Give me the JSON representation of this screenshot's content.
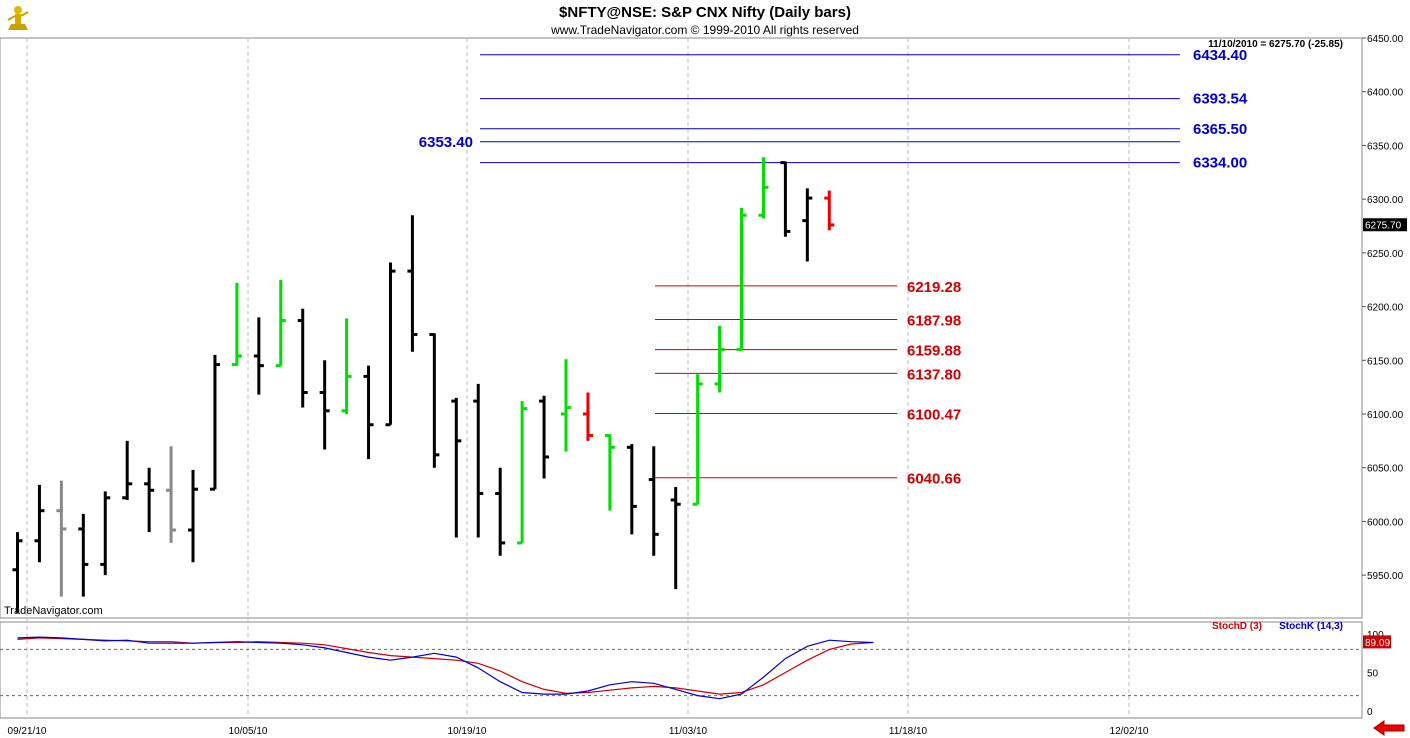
{
  "header": {
    "title": "$NFTY@NSE:  S&P CNX Nifty  (Daily bars)",
    "subtitle": "www.TradeNavigator.com © 1999-2010 All rights reserved",
    "quote": "11/10/2010 = 6275.70 (-25.85)",
    "watermark": "TradeNavigator.com"
  },
  "colors": {
    "up": "#00dd00",
    "down": "#000000",
    "gray": "#888888",
    "red": "#ee0000",
    "resistance": "#0000cc",
    "support": "#cc0000",
    "stochD": "#cc0000",
    "stochK": "#0000cc"
  },
  "icons": {
    "logo": "trader-figure-icon",
    "nav": "left-arrow-icon"
  },
  "chart_data": {
    "type": "bar",
    "subtype": "ohlc",
    "ylim": [
      5915,
      6455
    ],
    "y_ticks": [
      "6450.00",
      "6400.00",
      "6350.00",
      "6300.00",
      "6250.00",
      "6200.00",
      "6150.00",
      "6100.00",
      "6050.00",
      "6000.00",
      "5950.00"
    ],
    "x_labels": [
      "09/21/10",
      "10/05/10",
      "10/19/10",
      "11/03/10",
      "11/18/10",
      "12/02/10"
    ],
    "last_price": "6275.70",
    "bars": [
      {
        "o": 5955,
        "h": 5990,
        "l": 5915,
        "c": 5982,
        "col": "down"
      },
      {
        "o": 5982,
        "h": 6034,
        "l": 5962,
        "c": 6010,
        "col": "down"
      },
      {
        "o": 6010,
        "h": 6038,
        "l": 5930,
        "c": 5993,
        "col": "gray"
      },
      {
        "o": 5993,
        "h": 6007,
        "l": 5930,
        "c": 5960,
        "col": "down"
      },
      {
        "o": 5960,
        "h": 6028,
        "l": 5950,
        "c": 6022,
        "col": "down"
      },
      {
        "o": 6022,
        "h": 6075,
        "l": 6020,
        "c": 6035,
        "col": "down"
      },
      {
        "o": 6035,
        "h": 6050,
        "l": 5990,
        "c": 6029,
        "col": "down"
      },
      {
        "o": 6029,
        "h": 6070,
        "l": 5980,
        "c": 5992,
        "col": "gray"
      },
      {
        "o": 5992,
        "h": 6048,
        "l": 5962,
        "c": 6030,
        "col": "down"
      },
      {
        "o": 6030,
        "h": 6155,
        "l": 6030,
        "c": 6146,
        "col": "down"
      },
      {
        "o": 6146,
        "h": 6222,
        "l": 6145,
        "c": 6154,
        "col": "up"
      },
      {
        "o": 6154,
        "h": 6190,
        "l": 6118,
        "c": 6145,
        "col": "down"
      },
      {
        "o": 6145,
        "h": 6225,
        "l": 6145,
        "c": 6187,
        "col": "up"
      },
      {
        "o": 6187,
        "h": 6198,
        "l": 6106,
        "c": 6120,
        "col": "down"
      },
      {
        "o": 6120,
        "h": 6150,
        "l": 6067,
        "c": 6103,
        "col": "down"
      },
      {
        "o": 6103,
        "h": 6189,
        "l": 6100,
        "c": 6135,
        "col": "up"
      },
      {
        "o": 6135,
        "h": 6145,
        "l": 6058,
        "c": 6090,
        "col": "down"
      },
      {
        "o": 6090,
        "h": 6241,
        "l": 6090,
        "c": 6233,
        "col": "down"
      },
      {
        "o": 6233,
        "h": 6285,
        "l": 6158,
        "c": 6174,
        "col": "down"
      },
      {
        "o": 6174,
        "h": 6175,
        "l": 6050,
        "c": 6062,
        "col": "down"
      },
      {
        "o": 6112,
        "h": 6115,
        "l": 5985,
        "c": 6075,
        "col": "down"
      },
      {
        "o": 6112,
        "h": 6128,
        "l": 5985,
        "c": 6026,
        "col": "down"
      },
      {
        "o": 6026,
        "h": 6050,
        "l": 5968,
        "c": 5980,
        "col": "down"
      },
      {
        "o": 5980,
        "h": 6112,
        "l": 5980,
        "c": 6105,
        "col": "up"
      },
      {
        "o": 6112,
        "h": 6117,
        "l": 6040,
        "c": 6060,
        "col": "down"
      },
      {
        "o": 6100,
        "h": 6151,
        "l": 6065,
        "c": 6106,
        "col": "up"
      },
      {
        "o": 6100,
        "h": 6120,
        "l": 6075,
        "c": 6080,
        "col": "red"
      },
      {
        "o": 6080,
        "h": 6081,
        "l": 6010,
        "c": 6069,
        "col": "up"
      },
      {
        "o": 6069,
        "h": 6072,
        "l": 5988,
        "c": 6014,
        "col": "down"
      },
      {
        "o": 6039,
        "h": 6070,
        "l": 5968,
        "c": 5988,
        "col": "down"
      },
      {
        "o": 6020,
        "h": 6032,
        "l": 5937,
        "c": 6016,
        "col": "down"
      },
      {
        "o": 6016,
        "h": 6137,
        "l": 6016,
        "c": 6128,
        "col": "up"
      },
      {
        "o": 6128,
        "h": 6182,
        "l": 6120,
        "c": 6160,
        "col": "up"
      },
      {
        "o": 6160,
        "h": 6292,
        "l": 6159,
        "c": 6285,
        "col": "up"
      },
      {
        "o": 6285,
        "h": 6339,
        "l": 6282,
        "c": 6311,
        "col": "up"
      },
      {
        "o": 6334,
        "h": 6335,
        "l": 6265,
        "c": 6270,
        "col": "down"
      },
      {
        "o": 6280,
        "h": 6310,
        "l": 6242,
        "c": 6301,
        "col": "down"
      },
      {
        "o": 6301,
        "h": 6308,
        "l": 6271,
        "c": 6276,
        "col": "red"
      }
    ],
    "blue_lines": [
      {
        "label": "6434.40",
        "y": 6434.4
      },
      {
        "label": "6393.54",
        "y": 6393.54
      },
      {
        "label": "6365.50",
        "y": 6365.5
      },
      {
        "label": "6353.40",
        "y": 6353.4
      },
      {
        "label": "6334.00",
        "y": 6334.0
      }
    ],
    "red_lines": [
      {
        "label": "6219.28",
        "y": 6219.28
      },
      {
        "label": "6187.98",
        "y": 6187.98
      },
      {
        "label": "6159.88",
        "y": 6159.88
      },
      {
        "label": "6137.80",
        "y": 6137.8
      },
      {
        "label": "6100.47",
        "y": 6100.47
      },
      {
        "label": "6040.66",
        "y": 6040.66
      }
    ],
    "stochastic": {
      "ylim": [
        0,
        100
      ],
      "y_ticks": [
        "100",
        "50",
        "0"
      ],
      "levels": [
        80,
        20
      ],
      "value_label": "89.09",
      "legend": [
        "StochD (3)",
        "StochK (14,3)"
      ],
      "stochD": [
        93,
        95,
        94,
        93,
        92,
        91,
        90,
        90,
        88,
        89,
        89,
        90,
        89,
        88,
        86,
        81,
        76,
        72,
        70,
        68,
        66,
        62,
        52,
        38,
        28,
        23,
        24,
        27,
        30,
        32,
        30,
        26,
        22,
        24,
        34,
        50,
        66,
        80,
        87,
        89
      ],
      "stochK": [
        95,
        96,
        95,
        93,
        91,
        92,
        88,
        88,
        88,
        89,
        90,
        89,
        88,
        86,
        82,
        76,
        70,
        66,
        70,
        75,
        70,
        56,
        38,
        24,
        22,
        22,
        26,
        34,
        38,
        36,
        28,
        20,
        16,
        22,
        44,
        68,
        84,
        92,
        90,
        89
      ]
    }
  }
}
